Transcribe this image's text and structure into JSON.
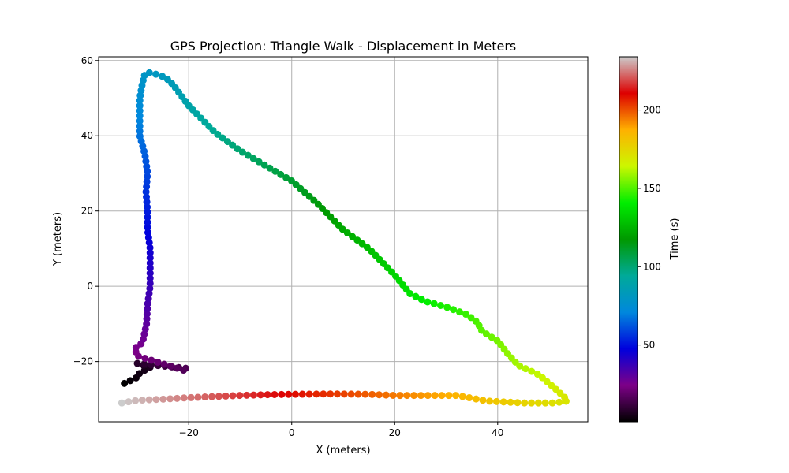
{
  "chart_data": {
    "type": "scatter",
    "title": "GPS Projection: Triangle Walk - Displacement in Meters",
    "xlabel": "X (meters)",
    "ylabel": "Y (meters)",
    "xlim": [
      -37.5,
      57.5
    ],
    "ylim": [
      -36,
      61
    ],
    "xticks": [
      -20,
      0,
      20,
      40
    ],
    "xtick_labels": [
      "−20",
      "0",
      "20",
      "40"
    ],
    "yticks": [
      -20,
      0,
      20,
      40,
      60
    ],
    "ytick_labels": [
      "−20",
      "0",
      "20",
      "40",
      "60"
    ],
    "grid": true,
    "colormap": "nipy_spectral",
    "colorbar": {
      "label": "Time (s)",
      "range": [
        1,
        234
      ],
      "ticks": [
        50,
        100,
        150,
        200
      ],
      "tick_labels": [
        "50",
        "100",
        "150",
        "200"
      ]
    },
    "path_waypoints": [
      [
        -32.5,
        -25.8
      ],
      [
        -30.0,
        -24.2
      ],
      [
        -29.5,
        -23.0
      ],
      [
        -27.5,
        -21.5
      ],
      [
        -30.0,
        -20.5
      ],
      [
        -20.5,
        -21.8
      ],
      [
        -20.5,
        -22.5
      ],
      [
        -30.0,
        -18.5
      ],
      [
        -30.5,
        -16.5
      ],
      [
        -29.0,
        -15.0
      ],
      [
        -28.2,
        -10.0
      ],
      [
        -28.0,
        -5.0
      ],
      [
        -27.5,
        0.0
      ],
      [
        -27.5,
        5.0
      ],
      [
        -27.5,
        10.0
      ],
      [
        -28.0,
        15.0
      ],
      [
        -28.0,
        20.0
      ],
      [
        -28.3,
        25.0
      ],
      [
        -28.0,
        30.0
      ],
      [
        -28.5,
        35.0
      ],
      [
        -29.5,
        40.0
      ],
      [
        -29.5,
        45.0
      ],
      [
        -29.5,
        50.0
      ],
      [
        -29.0,
        54.0
      ],
      [
        -28.5,
        56.5
      ],
      [
        -27.5,
        56.8
      ],
      [
        -26.0,
        56.2
      ],
      [
        -24.5,
        55.5
      ],
      [
        -23.0,
        53.5
      ],
      [
        -20.0,
        48.0
      ],
      [
        -15.0,
        41.0
      ],
      [
        -10.0,
        36.0
      ],
      [
        -5.0,
        32.0
      ],
      [
        0.0,
        28.0
      ],
      [
        5.0,
        22.0
      ],
      [
        10.0,
        15.0
      ],
      [
        15.0,
        10.0
      ],
      [
        20.0,
        3.0
      ],
      [
        23.0,
        -2.0
      ],
      [
        26.0,
        -4.0
      ],
      [
        30.0,
        -5.5
      ],
      [
        34.0,
        -7.5
      ],
      [
        36.0,
        -9.5
      ],
      [
        37.0,
        -12.0
      ],
      [
        40.0,
        -14.5
      ],
      [
        42.0,
        -18.0
      ],
      [
        44.0,
        -21.0
      ],
      [
        48.0,
        -23.5
      ],
      [
        51.0,
        -27.0
      ],
      [
        53.0,
        -29.5
      ],
      [
        53.5,
        -30.5
      ],
      [
        51.0,
        -31.0
      ],
      [
        45.0,
        -31.0
      ],
      [
        38.0,
        -30.5
      ],
      [
        32.0,
        -29.0
      ],
      [
        25.0,
        -29.0
      ],
      [
        20.0,
        -29.0
      ],
      [
        15.0,
        -28.7
      ],
      [
        8.0,
        -28.6
      ],
      [
        0.0,
        -28.7
      ],
      [
        -5.0,
        -28.8
      ],
      [
        -10.0,
        -29.0
      ],
      [
        -15.0,
        -29.3
      ],
      [
        -20.0,
        -29.6
      ],
      [
        -25.0,
        -30.0
      ],
      [
        -30.0,
        -30.3
      ],
      [
        -33.0,
        -31.0
      ]
    ],
    "t_start": 1,
    "t_end": 234
  }
}
